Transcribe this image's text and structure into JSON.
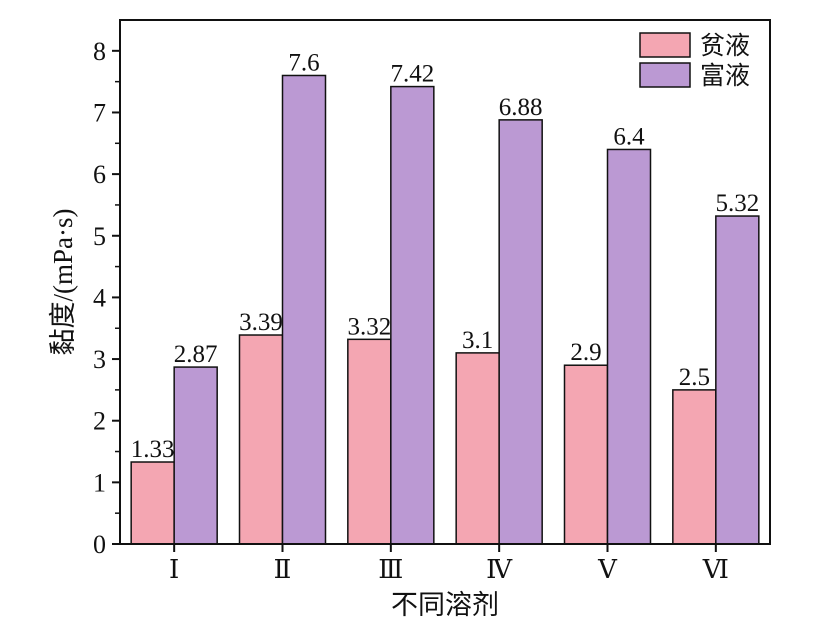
{
  "chart_data": {
    "type": "bar",
    "xlabel": "不同溶剂",
    "ylabel": "黏度/(mPa·s)",
    "categories": [
      "Ⅰ",
      "Ⅱ",
      "Ⅲ",
      "Ⅳ",
      "Ⅴ",
      "Ⅵ"
    ],
    "ylim": [
      0,
      8.5
    ],
    "yticks": [
      0,
      1,
      2,
      3,
      4,
      5,
      6,
      7,
      8
    ],
    "grid": false,
    "legend_position": "top-right",
    "series": [
      {
        "name": "贫液",
        "color": "#f4a6b2",
        "values": [
          1.33,
          3.39,
          3.32,
          3.1,
          2.9,
          2.5
        ],
        "labels": [
          "1.33",
          "3.39",
          "3.32",
          "3.1",
          "2.9",
          "2.5"
        ]
      },
      {
        "name": "富液",
        "color": "#bb99d3",
        "values": [
          2.87,
          7.6,
          7.42,
          6.88,
          6.4,
          5.32
        ],
        "labels": [
          "2.87",
          "7.6",
          "7.42",
          "6.88",
          "6.4",
          "5.32"
        ]
      }
    ]
  }
}
